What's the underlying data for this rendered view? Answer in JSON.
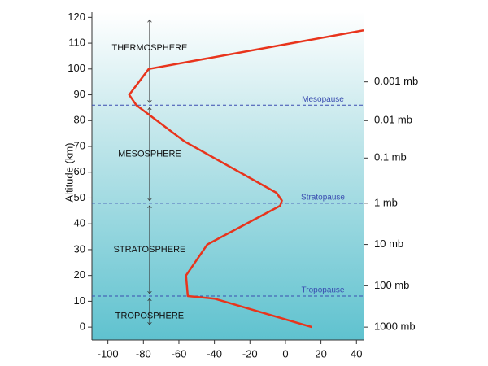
{
  "chart_data": {
    "type": "line",
    "y_label": "Altitude (km)",
    "series": [
      {
        "color": "#e8341c",
        "x": [
          15,
          -40,
          -55,
          -56,
          -44,
          -3,
          -2,
          -5,
          -57,
          -84,
          -88,
          -77,
          44
        ],
        "values": [
          0,
          11,
          12,
          20,
          32,
          47,
          49,
          52,
          72,
          86,
          90,
          100,
          115
        ]
      }
    ],
    "xlim": [
      -109,
      44
    ],
    "xticks": [
      -100,
      -80,
      -60,
      -40,
      -20,
      0,
      20,
      40
    ],
    "ylim": [
      -5,
      122
    ],
    "yticks": [
      0,
      10,
      20,
      30,
      40,
      50,
      60,
      70,
      80,
      90,
      100,
      110,
      120
    ],
    "y2lim": [
      -5,
      122
    ],
    "y2ticks": [
      {
        "value": 95,
        "label": "0.001 mb"
      },
      {
        "value": 80,
        "label": "0.01 mb"
      },
      {
        "value": 65.5,
        "label": "0.1 mb"
      },
      {
        "value": 48,
        "label": "1 mb"
      },
      {
        "value": 32,
        "label": "10 mb"
      },
      {
        "value": 16,
        "label": "100 mb"
      },
      {
        "value": 0,
        "label": "1000 mb"
      }
    ],
    "boundaries": [
      {
        "name": "Tropopause",
        "altitude": 12
      },
      {
        "name": "Stratopause",
        "altitude": 48
      },
      {
        "name": "Mesopause",
        "altitude": 86
      }
    ],
    "layers": [
      "TROPOSPHERE",
      "STRATOSPHERE",
      "MESOSPHERE",
      "THERMOSPHERE"
    ]
  }
}
